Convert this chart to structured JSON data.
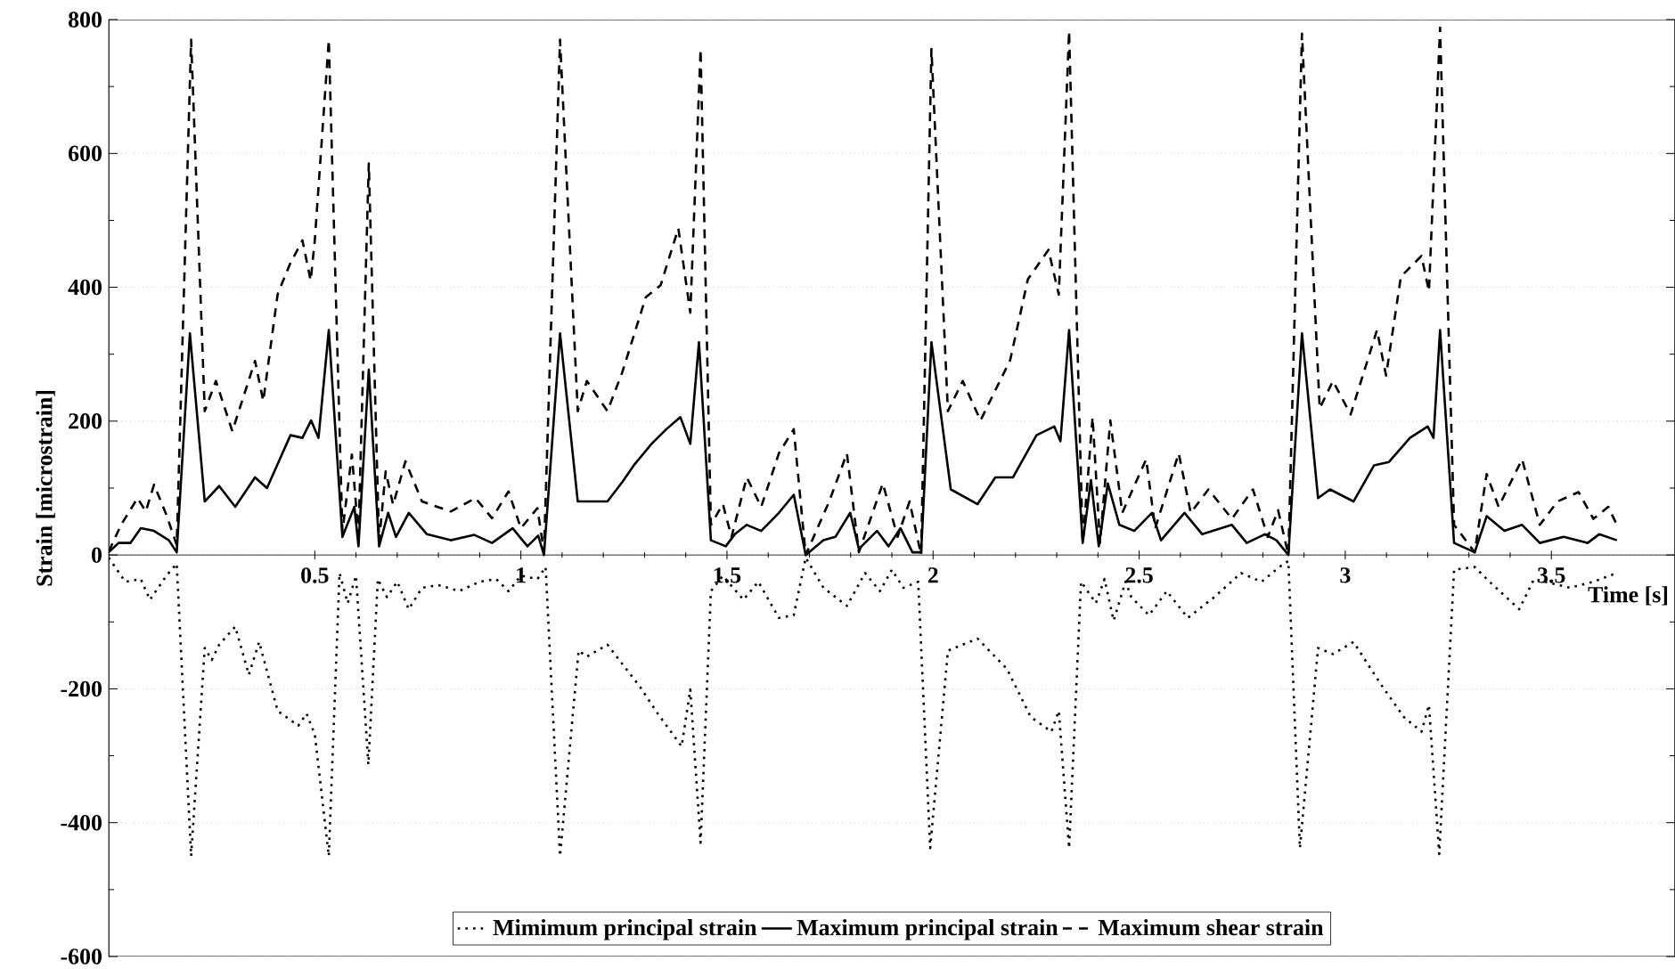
{
  "chart_data": {
    "type": "line",
    "xlabel": "Time [s]",
    "ylabel": "Strain [microstrain]",
    "xlim": [
      0,
      3.8
    ],
    "ylim": [
      -600,
      800
    ],
    "xticks": [
      0.5,
      1,
      1.5,
      2,
      2.5,
      3,
      3.5
    ],
    "yticks": [
      -600,
      -400,
      -200,
      0,
      200,
      400,
      600,
      800
    ],
    "grid": "y",
    "legend": "bottom",
    "marker": "none",
    "series": [
      {
        "name": "Mimimum principal strain",
        "color": "#000000",
        "line_style": "dotted",
        "x": [
          0,
          0.04,
          0.078,
          0.1,
          0.14,
          0.165,
          0.2,
          0.233,
          0.25,
          0.268,
          0.307,
          0.34,
          0.365,
          0.41,
          0.46,
          0.48,
          0.5,
          0.534,
          0.56,
          0.58,
          0.6,
          0.63,
          0.653,
          0.675,
          0.7,
          0.728,
          0.76,
          0.8,
          0.85,
          0.9,
          0.94,
          0.97,
          1.0,
          1.04,
          1.06,
          1.095,
          1.14,
          1.16,
          1.21,
          1.289,
          1.332,
          1.39,
          1.411,
          1.436,
          1.461,
          1.49,
          1.54,
          1.576,
          1.626,
          1.662,
          1.691,
          1.734,
          1.791,
          1.835,
          1.871,
          1.9,
          1.928,
          1.964,
          1.993,
          2.036,
          2.108,
          2.179,
          2.237,
          2.287,
          2.305,
          2.33,
          2.359,
          2.395,
          2.416,
          2.438,
          2.467,
          2.481,
          2.524,
          2.567,
          2.618,
          2.682,
          2.747,
          2.797,
          2.84,
          2.862,
          2.89,
          2.934,
          2.97,
          3.02,
          3.085,
          3.142,
          3.185,
          3.203,
          3.228,
          3.264,
          3.314,
          3.35,
          3.422,
          3.458,
          3.545,
          3.602,
          3.659
        ],
        "values": [
          -4,
          -40,
          -36,
          -67,
          -31,
          -13,
          -450,
          -139,
          -157,
          -134,
          -107,
          -179,
          -130,
          -233,
          -255,
          -237,
          -268,
          -450,
          -27,
          -72,
          -31,
          -313,
          -36,
          -63,
          -40,
          -81,
          -49,
          -45,
          -54,
          -40,
          -36,
          -54,
          -31,
          -36,
          -18,
          -450,
          -143,
          -152,
          -134,
          -197,
          -237,
          -286,
          -201,
          -430,
          -54,
          -31,
          -67,
          -40,
          -94,
          -90,
          -4,
          -49,
          -76,
          -27,
          -54,
          -22,
          -49,
          -40,
          -438,
          -143,
          -125,
          -170,
          -242,
          -264,
          -233,
          -438,
          -40,
          -72,
          -36,
          -98,
          -40,
          -63,
          -90,
          -54,
          -94,
          -63,
          -27,
          -40,
          -18,
          -9,
          -438,
          -139,
          -148,
          -130,
          -192,
          -242,
          -264,
          -224,
          -447,
          -22,
          -18,
          -40,
          -81,
          -36,
          -49,
          -40,
          -27
        ]
      },
      {
        "name": "Maximum principal strain",
        "color": "#000000",
        "line_style": "solid",
        "x": [
          0,
          0.024,
          0.053,
          0.078,
          0.11,
          0.146,
          0.165,
          0.197,
          0.233,
          0.268,
          0.307,
          0.355,
          0.384,
          0.441,
          0.47,
          0.491,
          0.509,
          0.534,
          0.567,
          0.596,
          0.606,
          0.631,
          0.656,
          0.678,
          0.697,
          0.728,
          0.772,
          0.83,
          0.887,
          0.93,
          0.98,
          1.016,
          1.042,
          1.056,
          1.095,
          1.138,
          1.21,
          1.246,
          1.274,
          1.317,
          1.353,
          1.387,
          1.411,
          1.432,
          1.461,
          1.497,
          1.519,
          1.548,
          1.583,
          1.626,
          1.662,
          1.691,
          1.734,
          1.763,
          1.799,
          1.82,
          1.864,
          1.892,
          1.921,
          1.95,
          1.971,
          1.996,
          2.043,
          2.108,
          2.151,
          2.194,
          2.251,
          2.294,
          2.309,
          2.33,
          2.363,
          2.383,
          2.402,
          2.424,
          2.452,
          2.488,
          2.531,
          2.553,
          2.61,
          2.653,
          2.725,
          2.761,
          2.805,
          2.833,
          2.862,
          2.895,
          2.934,
          2.963,
          3.02,
          3.07,
          3.106,
          3.157,
          3.2,
          3.214,
          3.23,
          3.264,
          3.314,
          3.343,
          3.386,
          3.429,
          3.472,
          3.53,
          3.588,
          3.616,
          3.659
        ],
        "values": [
          4,
          18,
          18,
          40,
          36,
          22,
          4,
          331,
          80,
          103,
          72,
          116,
          100,
          179,
          175,
          201,
          175,
          336,
          27,
          72,
          13,
          277,
          13,
          63,
          27,
          63,
          31,
          22,
          30,
          18,
          40,
          13,
          29,
          0,
          331,
          80,
          80,
          109,
          134,
          166,
          188,
          206,
          166,
          318,
          22,
          13,
          31,
          45,
          36,
          63,
          90,
          0,
          22,
          27,
          63,
          9,
          36,
          13,
          40,
          4,
          4,
          318,
          98,
          76,
          116,
          116,
          179,
          192,
          170,
          336,
          18,
          112,
          13,
          107,
          45,
          36,
          63,
          22,
          63,
          31,
          45,
          18,
          31,
          22,
          0,
          331,
          85,
          98,
          80,
          134,
          139,
          175,
          192,
          175,
          336,
          18,
          4,
          58,
          36,
          45,
          18,
          27,
          18,
          31,
          22
        ]
      },
      {
        "name": "Maximum shear strain",
        "color": "#000000",
        "line_style": "dashed",
        "x": [
          0,
          0.03,
          0.07,
          0.09,
          0.11,
          0.14,
          0.165,
          0.2,
          0.233,
          0.26,
          0.3,
          0.355,
          0.375,
          0.41,
          0.44,
          0.47,
          0.49,
          0.5,
          0.534,
          0.567,
          0.59,
          0.606,
          0.631,
          0.656,
          0.672,
          0.69,
          0.72,
          0.76,
          0.83,
          0.89,
          0.93,
          0.97,
          1.0,
          1.04,
          1.056,
          1.095,
          1.138,
          1.16,
          1.21,
          1.246,
          1.303,
          1.339,
          1.382,
          1.411,
          1.436,
          1.461,
          1.49,
          1.511,
          1.548,
          1.583,
          1.626,
          1.662,
          1.691,
          1.748,
          1.791,
          1.82,
          1.878,
          1.914,
          1.943,
          1.971,
          1.996,
          2.036,
          2.072,
          2.115,
          2.187,
          2.23,
          2.28,
          2.305,
          2.33,
          2.363,
          2.387,
          2.405,
          2.43,
          2.459,
          2.517,
          2.539,
          2.596,
          2.625,
          2.668,
          2.725,
          2.776,
          2.812,
          2.837,
          2.862,
          2.895,
          2.938,
          2.97,
          3.013,
          3.077,
          3.099,
          3.135,
          3.185,
          3.203,
          3.23,
          3.264,
          3.314,
          3.343,
          3.372,
          3.429,
          3.472,
          3.515,
          3.566,
          3.602,
          3.638,
          3.659
        ],
        "values": [
          5,
          45,
          85,
          65,
          105,
          60,
          15,
          770,
          215,
          260,
          185,
          290,
          230,
          390,
          435,
          470,
          410,
          470,
          770,
          35,
          150,
          30,
          585,
          20,
          125,
          75,
          140,
          80,
          65,
          85,
          55,
          95,
          40,
          70,
          5,
          770,
          215,
          260,
          215,
          273,
          385,
          403,
          488,
          362,
          756,
          45,
          76,
          27,
          116,
          72,
          152,
          188,
          0,
          80,
          152,
          4,
          107,
          27,
          80,
          0,
          756,
          215,
          260,
          201,
          291,
          412,
          456,
          389,
          783,
          18,
          206,
          18,
          201,
          63,
          143,
          40,
          152,
          63,
          98,
          54,
          98,
          27,
          67,
          0,
          779,
          219,
          260,
          210,
          336,
          268,
          416,
          447,
          394,
          788,
          45,
          4,
          121,
          72,
          143,
          45,
          80,
          94,
          54,
          72,
          45
        ]
      }
    ]
  }
}
